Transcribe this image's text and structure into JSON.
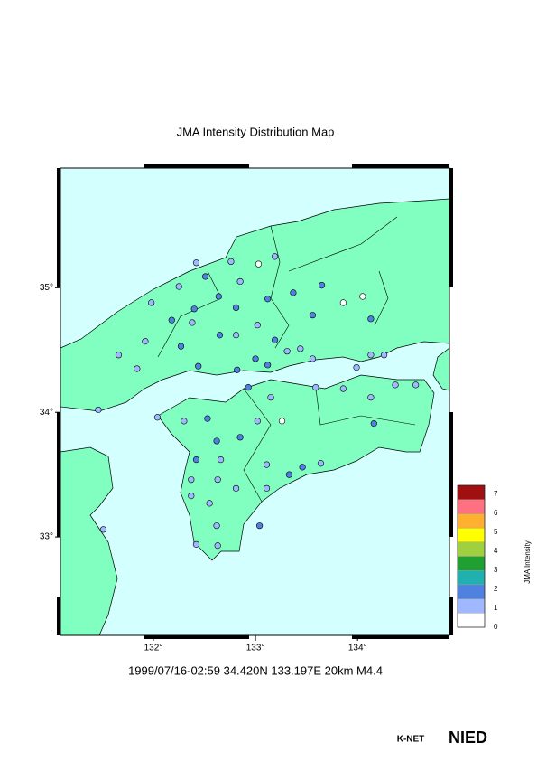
{
  "title": "JMA Intensity Distribution Map",
  "map": {
    "lon_range": [
      131.09,
      134.9
    ],
    "lat_range": [
      32.21,
      35.96
    ],
    "lon_ticks": [
      {
        "value": 132,
        "label": "132°"
      },
      {
        "value": 133,
        "label": "133°"
      },
      {
        "value": 134,
        "label": "134°"
      }
    ],
    "lat_ticks": [
      {
        "value": 35,
        "label": "35°"
      },
      {
        "value": 34,
        "label": "34°"
      },
      {
        "value": 33,
        "label": "33°"
      }
    ],
    "stations": [
      {
        "lon": 132.42,
        "lat": 35.2,
        "intensity": 1
      },
      {
        "lon": 132.51,
        "lat": 35.09,
        "intensity": 2
      },
      {
        "lon": 132.76,
        "lat": 35.21,
        "intensity": 1
      },
      {
        "lon": 132.85,
        "lat": 35.05,
        "intensity": 1
      },
      {
        "lon": 133.03,
        "lat": 35.19,
        "intensity": 0
      },
      {
        "lon": 133.19,
        "lat": 35.25,
        "intensity": 1
      },
      {
        "lon": 132.25,
        "lat": 35.01,
        "intensity": 1
      },
      {
        "lon": 131.98,
        "lat": 34.88,
        "intensity": 1
      },
      {
        "lon": 133.65,
        "lat": 35.02,
        "intensity": 2
      },
      {
        "lon": 133.86,
        "lat": 34.88,
        "intensity": 0
      },
      {
        "lon": 134.05,
        "lat": 34.93,
        "intensity": 0
      },
      {
        "lon": 132.64,
        "lat": 34.93,
        "intensity": 2
      },
      {
        "lon": 133.12,
        "lat": 34.91,
        "intensity": 2
      },
      {
        "lon": 133.37,
        "lat": 34.96,
        "intensity": 2
      },
      {
        "lon": 132.4,
        "lat": 34.83,
        "intensity": 2
      },
      {
        "lon": 132.81,
        "lat": 34.84,
        "intensity": 2
      },
      {
        "lon": 132.18,
        "lat": 34.74,
        "intensity": 2
      },
      {
        "lon": 132.38,
        "lat": 34.72,
        "intensity": 1
      },
      {
        "lon": 131.92,
        "lat": 34.57,
        "intensity": 1
      },
      {
        "lon": 132.27,
        "lat": 34.53,
        "intensity": 2
      },
      {
        "lon": 132.65,
        "lat": 34.62,
        "intensity": 2
      },
      {
        "lon": 132.81,
        "lat": 34.62,
        "intensity": 1
      },
      {
        "lon": 133.02,
        "lat": 34.7,
        "intensity": 1
      },
      {
        "lon": 133.19,
        "lat": 34.58,
        "intensity": 2
      },
      {
        "lon": 133.56,
        "lat": 34.78,
        "intensity": 2
      },
      {
        "lon": 134.13,
        "lat": 34.75,
        "intensity": 2
      },
      {
        "lon": 131.66,
        "lat": 34.46,
        "intensity": 1
      },
      {
        "lon": 131.84,
        "lat": 34.35,
        "intensity": 1
      },
      {
        "lon": 132.44,
        "lat": 34.37,
        "intensity": 2
      },
      {
        "lon": 132.82,
        "lat": 34.34,
        "intensity": 2
      },
      {
        "lon": 133.0,
        "lat": 34.43,
        "intensity": 2
      },
      {
        "lon": 133.12,
        "lat": 34.38,
        "intensity": 2
      },
      {
        "lon": 133.31,
        "lat": 34.49,
        "intensity": 1
      },
      {
        "lon": 133.44,
        "lat": 34.51,
        "intensity": 1
      },
      {
        "lon": 133.56,
        "lat": 34.43,
        "intensity": 1
      },
      {
        "lon": 133.99,
        "lat": 34.36,
        "intensity": 1
      },
      {
        "lon": 134.13,
        "lat": 34.46,
        "intensity": 1
      },
      {
        "lon": 134.26,
        "lat": 34.46,
        "intensity": 1
      },
      {
        "lon": 134.37,
        "lat": 34.22,
        "intensity": 1
      },
      {
        "lon": 134.57,
        "lat": 34.22,
        "intensity": 1
      },
      {
        "lon": 134.16,
        "lat": 33.91,
        "intensity": 2
      },
      {
        "lon": 133.86,
        "lat": 34.19,
        "intensity": 1
      },
      {
        "lon": 134.13,
        "lat": 34.12,
        "intensity": 1
      },
      {
        "lon": 133.59,
        "lat": 34.2,
        "intensity": 1
      },
      {
        "lon": 133.15,
        "lat": 34.12,
        "intensity": 1
      },
      {
        "lon": 132.93,
        "lat": 34.2,
        "intensity": 2
      },
      {
        "lon": 133.02,
        "lat": 33.93,
        "intensity": 1
      },
      {
        "lon": 133.26,
        "lat": 33.93,
        "intensity": 0
      },
      {
        "lon": 132.53,
        "lat": 33.95,
        "intensity": 2
      },
      {
        "lon": 132.3,
        "lat": 33.93,
        "intensity": 1
      },
      {
        "lon": 132.04,
        "lat": 33.96,
        "intensity": 1
      },
      {
        "lon": 131.46,
        "lat": 34.02,
        "intensity": 1
      },
      {
        "lon": 132.62,
        "lat": 33.77,
        "intensity": 2
      },
      {
        "lon": 132.66,
        "lat": 33.62,
        "intensity": 1
      },
      {
        "lon": 132.85,
        "lat": 33.8,
        "intensity": 2
      },
      {
        "lon": 133.11,
        "lat": 33.58,
        "intensity": 1
      },
      {
        "lon": 133.33,
        "lat": 33.5,
        "intensity": 2
      },
      {
        "lon": 133.46,
        "lat": 33.56,
        "intensity": 2
      },
      {
        "lon": 133.64,
        "lat": 33.59,
        "intensity": 1
      },
      {
        "lon": 132.42,
        "lat": 33.62,
        "intensity": 2
      },
      {
        "lon": 132.37,
        "lat": 33.46,
        "intensity": 1
      },
      {
        "lon": 132.63,
        "lat": 33.46,
        "intensity": 1
      },
      {
        "lon": 132.37,
        "lat": 33.33,
        "intensity": 1
      },
      {
        "lon": 132.81,
        "lat": 33.39,
        "intensity": 1
      },
      {
        "lon": 132.55,
        "lat": 33.27,
        "intensity": 1
      },
      {
        "lon": 133.11,
        "lat": 33.39,
        "intensity": 1
      },
      {
        "lon": 132.62,
        "lat": 33.09,
        "intensity": 1
      },
      {
        "lon": 133.04,
        "lat": 33.09,
        "intensity": 2
      },
      {
        "lon": 132.63,
        "lat": 32.93,
        "intensity": 1
      },
      {
        "lon": 132.42,
        "lat": 32.94,
        "intensity": 1
      },
      {
        "lon": 131.51,
        "lat": 33.06,
        "intensity": 1
      }
    ]
  },
  "legend": {
    "title": "JMA Intensity",
    "labels": [
      0,
      1,
      2,
      3,
      4,
      5,
      6,
      7
    ],
    "bands": [
      "#ffffff",
      "#a0b8ff",
      "#5080e0",
      "#20b0b0",
      "#20a030",
      "#a0d040",
      "#ffff00",
      "#ffb030",
      "#ff7080",
      "#a01010"
    ]
  },
  "caption": "1999/07/16-02:59 34.420N 133.197E 20km M4.4",
  "logo": {
    "left": "K-NET",
    "right": "NIED"
  }
}
